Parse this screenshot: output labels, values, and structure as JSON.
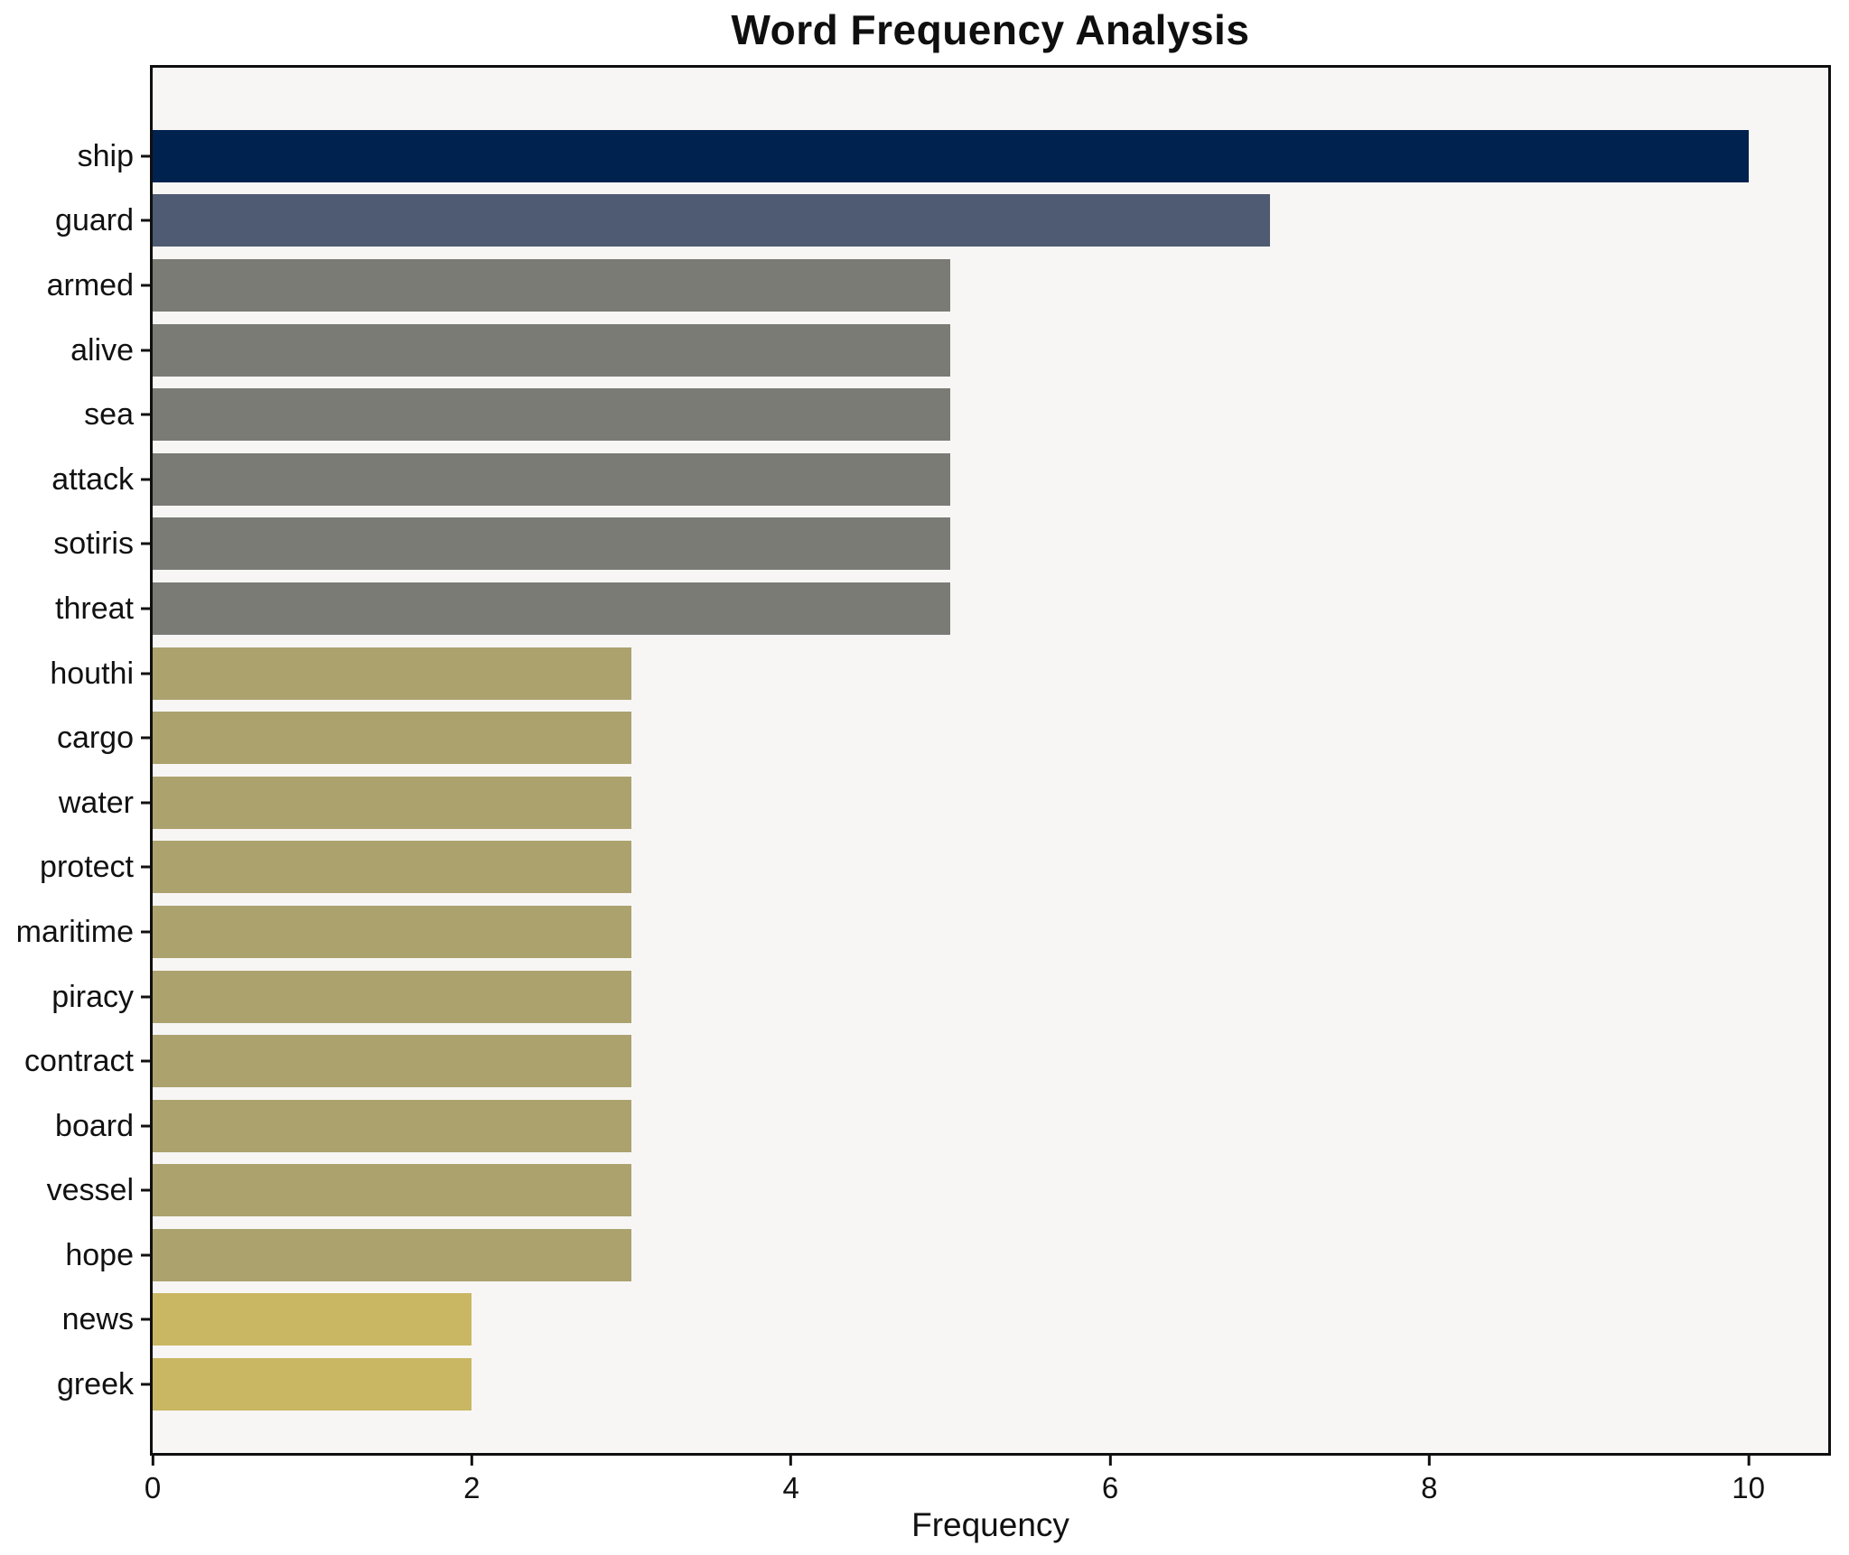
{
  "chart_data": {
    "type": "bar",
    "orientation": "horizontal",
    "title": "Word Frequency Analysis",
    "xlabel": "Frequency",
    "ylabel": "",
    "xlim": [
      0,
      10.5
    ],
    "xticks": [
      0,
      2,
      4,
      6,
      8,
      10
    ],
    "grid": false,
    "legend": "none",
    "plot_background": "#f7f6f5",
    "figure_background": "#ffffff",
    "categories": [
      "ship",
      "guard",
      "armed",
      "alive",
      "sea",
      "attack",
      "sotiris",
      "threat",
      "houthi",
      "cargo",
      "water",
      "protect",
      "maritime",
      "piracy",
      "contract",
      "board",
      "vessel",
      "hope",
      "news",
      "greek"
    ],
    "values": [
      10,
      7,
      5,
      5,
      5,
      5,
      5,
      5,
      3,
      3,
      3,
      3,
      3,
      3,
      3,
      3,
      3,
      3,
      2,
      2
    ],
    "bar_colors": [
      "#00224e",
      "#4f5b72",
      "#7b7b76",
      "#7b7b76",
      "#7b7b76",
      "#7b7b76",
      "#7b7b76",
      "#7b7b76",
      "#aca26e",
      "#aca26e",
      "#aca26e",
      "#aca26e",
      "#aca26e",
      "#aca26e",
      "#aca26e",
      "#aca26e",
      "#aca26e",
      "#aca26e",
      "#c9b763",
      "#c9b763"
    ]
  }
}
